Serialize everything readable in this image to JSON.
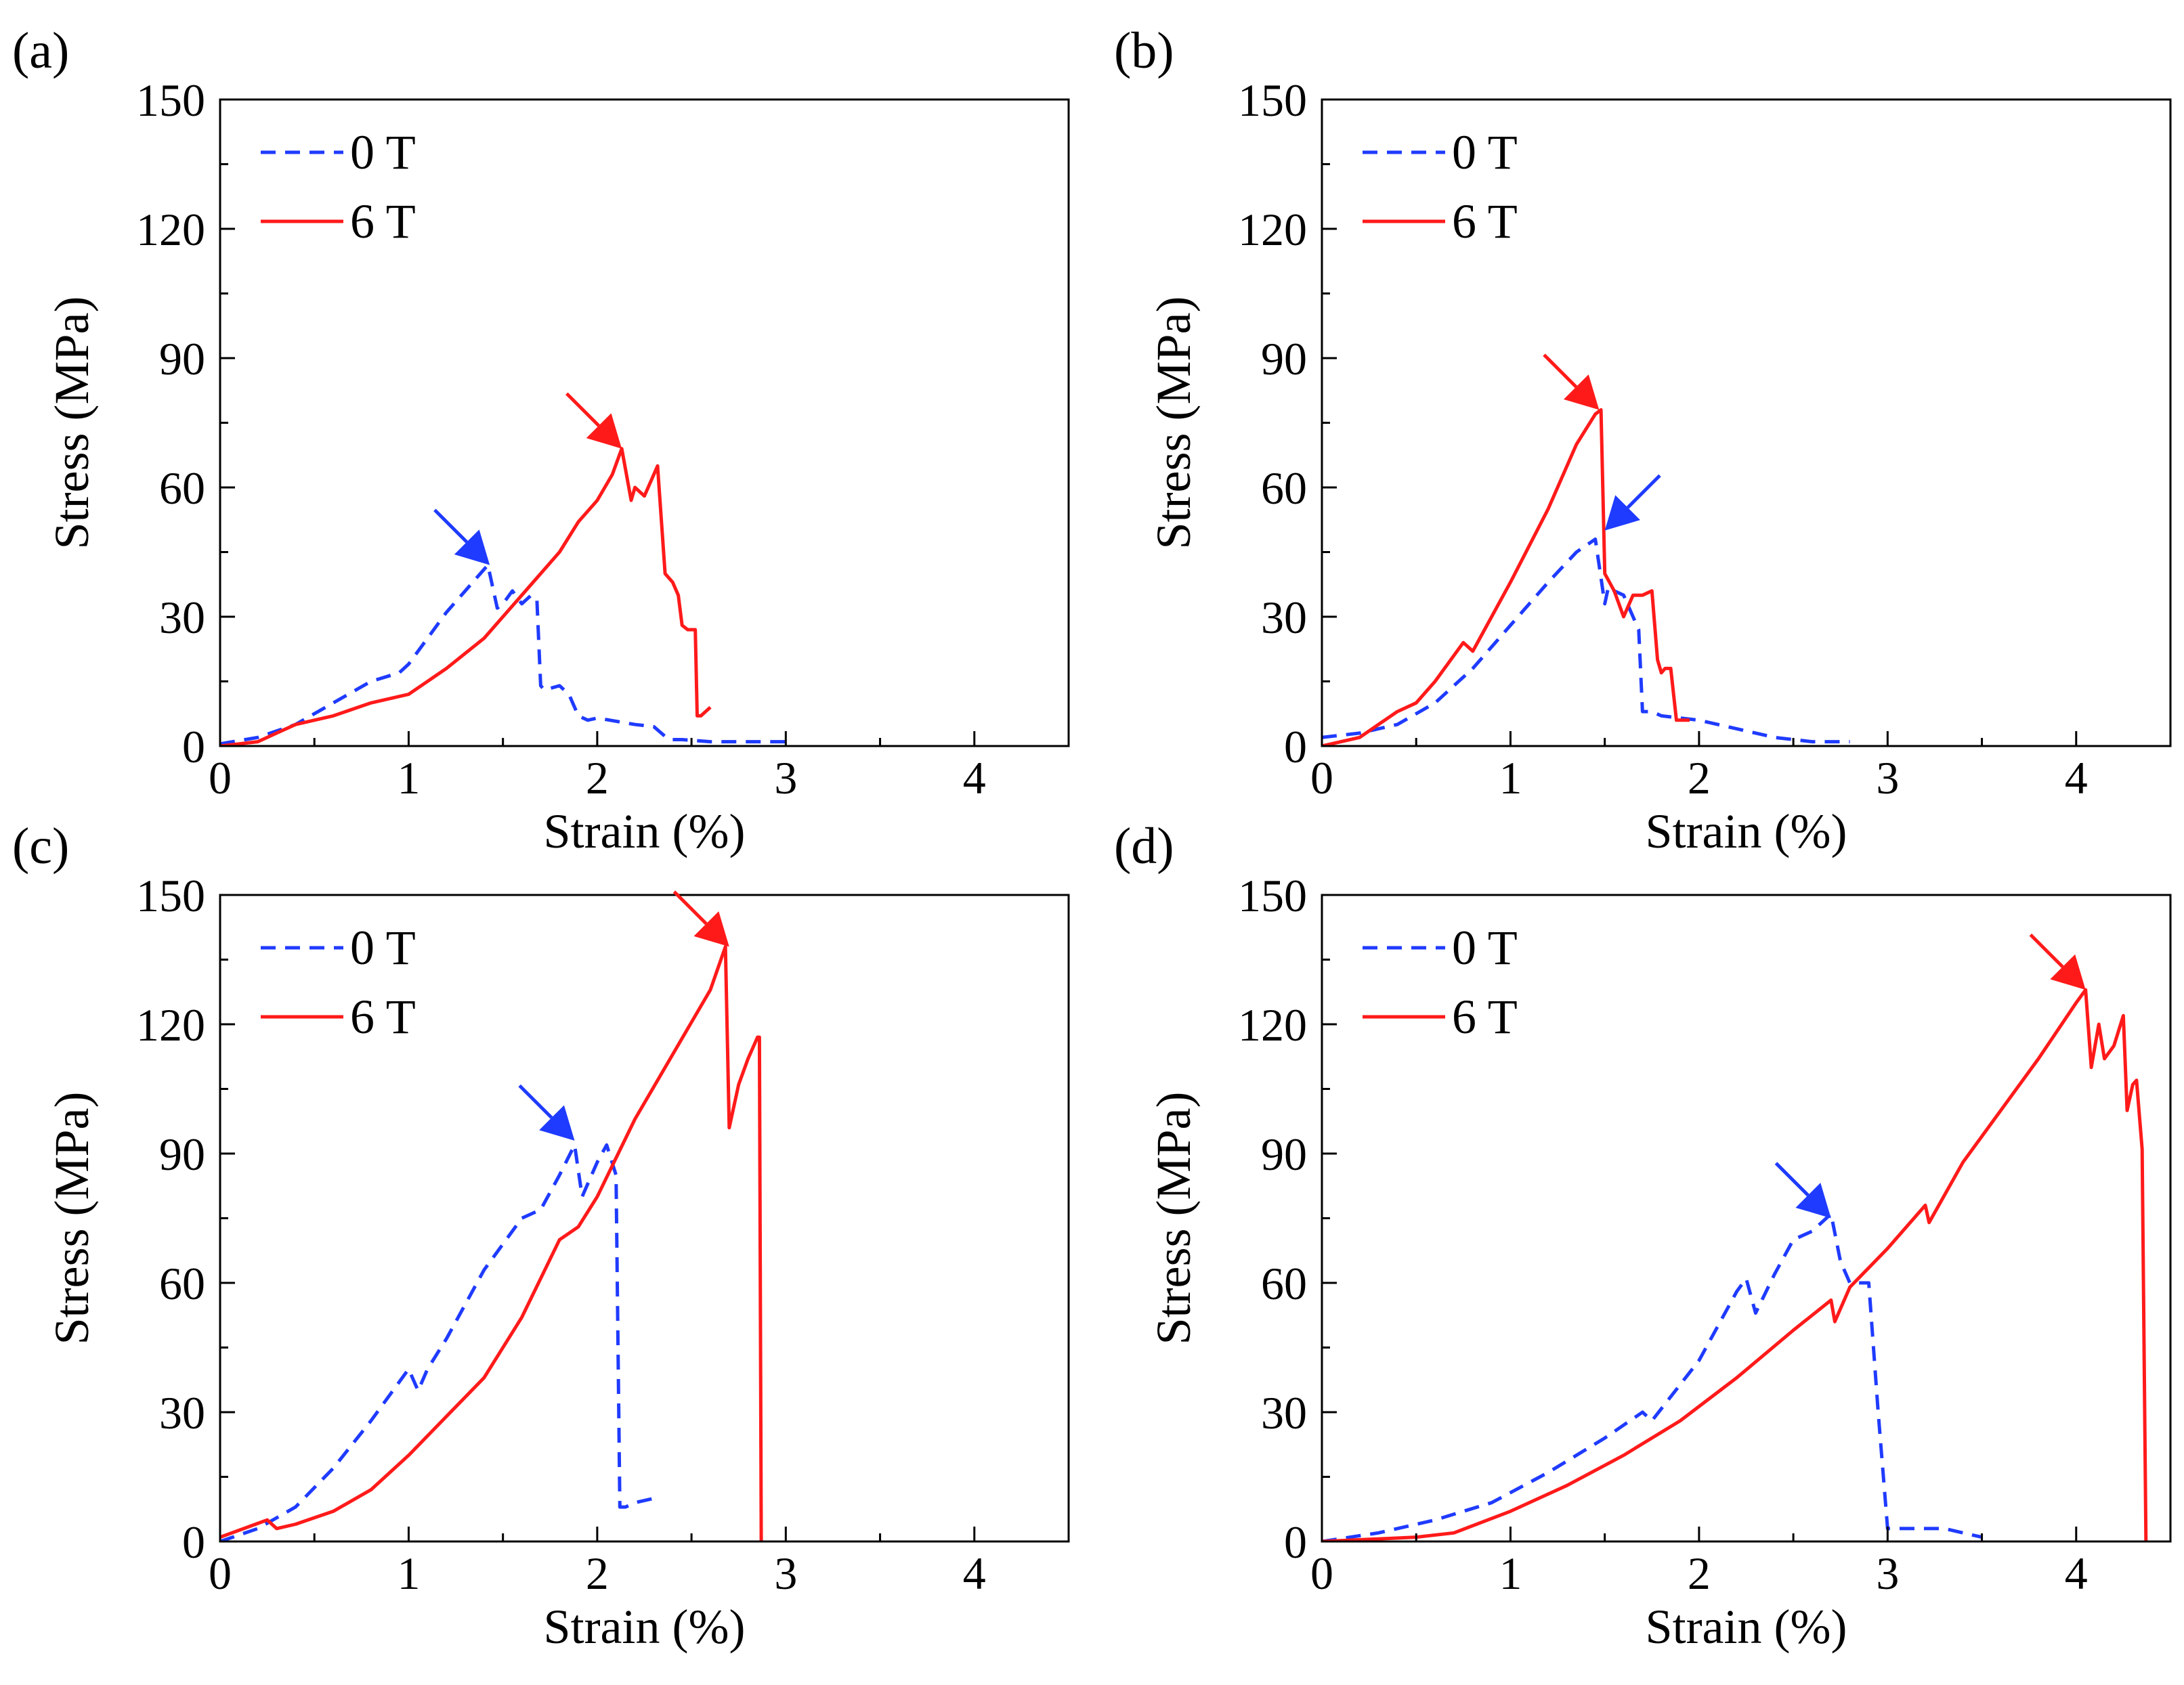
{
  "figure": {
    "colors": {
      "series_0T": "#1f3bff",
      "series_6T": "#ff1a1a",
      "axes": "#000000"
    }
  },
  "chart_data": [
    {
      "type": "line",
      "panel_label": "(a)",
      "xlabel": "Strain (%)",
      "ylabel": "Stress (MPa)",
      "xlim": [
        0,
        4.5
      ],
      "ylim": [
        0,
        150
      ],
      "xticks": [
        0,
        1,
        2,
        3,
        4
      ],
      "yticks": [
        0,
        30,
        60,
        90,
        120,
        150
      ],
      "legend": {
        "placement": "top-left",
        "entries": [
          "0 T",
          "6 T"
        ]
      },
      "arrows": [
        {
          "series": "0 T",
          "x": 1.43,
          "y": 42
        },
        {
          "series": "6 T",
          "x": 2.13,
          "y": 69
        }
      ],
      "series": [
        {
          "name": "0 T",
          "style": "dashed",
          "x": [
            0,
            0.2,
            0.4,
            0.6,
            0.8,
            0.95,
            1.0,
            1.1,
            1.2,
            1.3,
            1.38,
            1.42,
            1.47,
            1.5,
            1.55,
            1.6,
            1.65,
            1.68,
            1.7,
            1.72,
            1.8,
            1.85,
            1.9,
            1.95,
            2.0,
            2.2,
            2.3,
            2.38,
            2.45,
            2.6,
            2.8,
            3.0
          ],
          "y": [
            0.5,
            2,
            5,
            10,
            15,
            17,
            19,
            25,
            31,
            36,
            40,
            42,
            32,
            33,
            36,
            33,
            35,
            34,
            14,
            13,
            14,
            12,
            7,
            6,
            6.5,
            5,
            4.5,
            1.5,
            1.5,
            1,
            1,
            1
          ]
        },
        {
          "name": "6 T",
          "style": "solid",
          "x": [
            0,
            0.2,
            0.3,
            0.4,
            0.6,
            0.8,
            1.0,
            1.2,
            1.4,
            1.6,
            1.8,
            1.9,
            2.0,
            2.08,
            2.13,
            2.18,
            2.2,
            2.25,
            2.32,
            2.36,
            2.4,
            2.43,
            2.45,
            2.48,
            2.5,
            2.52,
            2.53,
            2.55,
            2.6
          ],
          "y": [
            0,
            1,
            3,
            5,
            7,
            10,
            12,
            18,
            25,
            35,
            45,
            52,
            57,
            63,
            69,
            57,
            60,
            58,
            65,
            40,
            38,
            35,
            28,
            27,
            27,
            27,
            7,
            7,
            9
          ]
        }
      ]
    },
    {
      "type": "line",
      "panel_label": "(b)",
      "xlabel": "Strain (%)",
      "ylabel": "Stress (MPa)",
      "xlim": [
        0,
        4.5
      ],
      "ylim": [
        0,
        150
      ],
      "xticks": [
        0,
        1,
        2,
        3,
        4
      ],
      "yticks": [
        0,
        30,
        60,
        90,
        120,
        150
      ],
      "legend": {
        "placement": "top-left",
        "entries": [
          "0 T",
          "6 T"
        ]
      },
      "arrows": [
        {
          "series": "6 T",
          "x": 1.47,
          "y": 78
        },
        {
          "series": "0 T",
          "x": 1.5,
          "y": 50
        }
      ],
      "series": [
        {
          "name": "0 T",
          "style": "dashed",
          "x": [
            0,
            0.2,
            0.4,
            0.6,
            0.8,
            1.0,
            1.2,
            1.35,
            1.45,
            1.5,
            1.52,
            1.55,
            1.6,
            1.65,
            1.68,
            1.7,
            1.75,
            1.8,
            2.0,
            2.2,
            2.4,
            2.6,
            2.8
          ],
          "y": [
            2,
            3,
            5,
            10,
            18,
            28,
            38,
            45,
            48,
            33,
            37,
            36,
            35,
            30,
            27,
            8,
            8,
            7,
            6,
            4,
            2,
            1,
            1
          ]
        },
        {
          "name": "6 T",
          "style": "solid",
          "x": [
            0,
            0.2,
            0.3,
            0.4,
            0.5,
            0.6,
            0.75,
            0.8,
            0.85,
            1.0,
            1.2,
            1.35,
            1.45,
            1.48,
            1.5,
            1.55,
            1.6,
            1.65,
            1.7,
            1.75,
            1.78,
            1.8,
            1.82,
            1.85,
            1.88,
            1.9,
            1.95
          ],
          "y": [
            0,
            2,
            5,
            8,
            10,
            15,
            24,
            22,
            26,
            38,
            55,
            70,
            77,
            78,
            40,
            36,
            30,
            35,
            35,
            36,
            20,
            17,
            18,
            18,
            6,
            6,
            6
          ]
        }
      ]
    },
    {
      "type": "line",
      "panel_label": "(c)",
      "xlabel": "Strain (%)",
      "ylabel": "Stress (MPa)",
      "xlim": [
        0,
        4.5
      ],
      "ylim": [
        0,
        150
      ],
      "xticks": [
        0,
        1,
        2,
        3,
        4
      ],
      "yticks": [
        0,
        30,
        60,
        90,
        120,
        150
      ],
      "legend": {
        "placement": "top-left",
        "entries": [
          "0 T",
          "6 T"
        ]
      },
      "arrows": [
        {
          "series": "6 T",
          "x": 2.7,
          "y": 138
        },
        {
          "series": "0 T",
          "x": 1.88,
          "y": 93
        }
      ],
      "series": [
        {
          "name": "0 T",
          "style": "dashed",
          "x": [
            0,
            0.2,
            0.4,
            0.6,
            0.8,
            1.0,
            1.05,
            1.1,
            1.2,
            1.4,
            1.6,
            1.7,
            1.8,
            1.88,
            1.92,
            2.0,
            2.05,
            2.1,
            2.12,
            2.15,
            2.2,
            2.3
          ],
          "y": [
            0,
            3,
            8,
            17,
            28,
            40,
            35,
            40,
            47,
            63,
            75,
            77,
            85,
            92,
            80,
            88,
            92,
            85,
            8,
            8,
            9,
            10
          ]
        },
        {
          "name": "6 T",
          "style": "solid",
          "x": [
            0,
            0.25,
            0.3,
            0.4,
            0.6,
            0.8,
            1.0,
            1.2,
            1.4,
            1.6,
            1.8,
            1.9,
            2.0,
            2.2,
            2.4,
            2.6,
            2.68,
            2.7,
            2.75,
            2.8,
            2.85,
            2.86,
            2.87
          ],
          "y": [
            1,
            5,
            3,
            4,
            7,
            12,
            20,
            29,
            38,
            52,
            70,
            73,
            80,
            98,
            113,
            128,
            138,
            96,
            106,
            112,
            117,
            117,
            0
          ]
        }
      ]
    },
    {
      "type": "line",
      "panel_label": "(d)",
      "xlabel": "Strain (%)",
      "ylabel": "Stress (MPa)",
      "xlim": [
        0,
        4.5
      ],
      "ylim": [
        0,
        150
      ],
      "xticks": [
        0,
        1,
        2,
        3,
        4
      ],
      "yticks": [
        0,
        30,
        60,
        90,
        120,
        150
      ],
      "legend": {
        "placement": "top-left",
        "entries": [
          "0 T",
          "6 T"
        ]
      },
      "arrows": [
        {
          "series": "6 T",
          "x": 4.05,
          "y": 128
        },
        {
          "series": "0 T",
          "x": 2.7,
          "y": 75
        }
      ],
      "series": [
        {
          "name": "0 T",
          "style": "dashed",
          "x": [
            0,
            0.3,
            0.6,
            0.9,
            1.2,
            1.5,
            1.7,
            1.75,
            2.0,
            2.2,
            2.25,
            2.3,
            2.4,
            2.5,
            2.6,
            2.7,
            2.75,
            2.8,
            2.9,
            2.95,
            3.0,
            3.1,
            3.3,
            3.5
          ],
          "y": [
            0,
            2,
            5,
            9,
            16,
            24,
            30,
            28,
            42,
            58,
            61,
            53,
            62,
            70,
            72,
            76,
            65,
            60,
            60,
            30,
            3,
            3,
            3,
            1
          ]
        },
        {
          "name": "6 T",
          "style": "solid",
          "x": [
            0,
            0.5,
            0.7,
            1.0,
            1.3,
            1.6,
            1.9,
            2.2,
            2.5,
            2.7,
            2.72,
            2.8,
            3.0,
            3.2,
            3.22,
            3.4,
            3.6,
            3.8,
            4.0,
            4.05,
            4.08,
            4.12,
            4.15,
            4.2,
            4.25,
            4.27,
            4.3,
            4.32,
            4.35,
            4.37
          ],
          "y": [
            0,
            1,
            2,
            7,
            13,
            20,
            28,
            38,
            49,
            56,
            51,
            59,
            68,
            78,
            74,
            88,
            100,
            112,
            125,
            128,
            110,
            120,
            112,
            115,
            122,
            100,
            106,
            107,
            91,
            0
          ]
        }
      ]
    }
  ]
}
